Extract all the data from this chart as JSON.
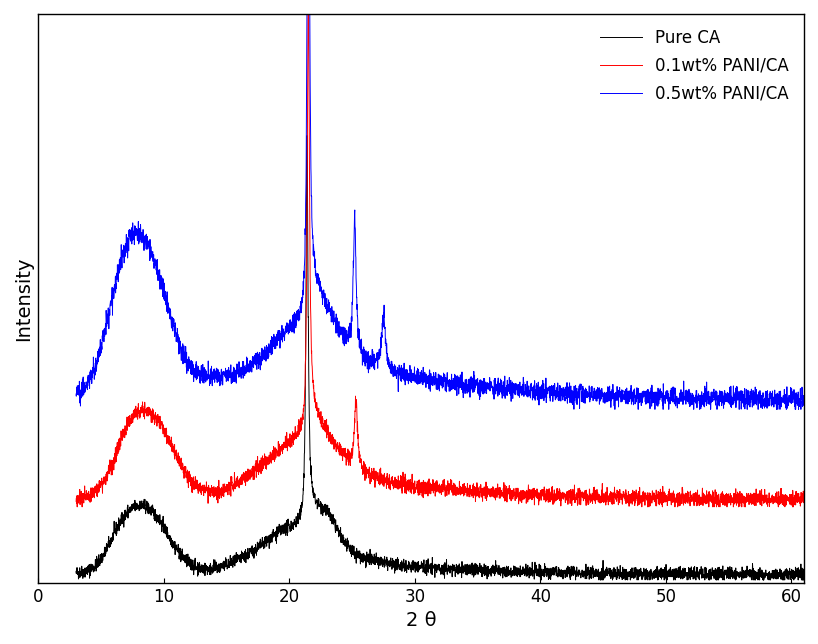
{
  "xlabel": "2 θ",
  "ylabel": "Intensity",
  "xlim": [
    0,
    61
  ],
  "ylim": [
    0,
    1.05
  ],
  "xticks": [
    0,
    10,
    20,
    30,
    40,
    50,
    60
  ],
  "legend_labels": [
    "Pure CA",
    "0.1wt% PANI/CA",
    "0.5wt% PANI/CA"
  ],
  "colors": [
    "black",
    "red",
    "blue"
  ],
  "figsize": [
    8.18,
    6.44
  ],
  "dpi": 100,
  "noise_seed": 42,
  "offsets": [
    0.0,
    0.13,
    0.3
  ],
  "background_color": "#ffffff"
}
